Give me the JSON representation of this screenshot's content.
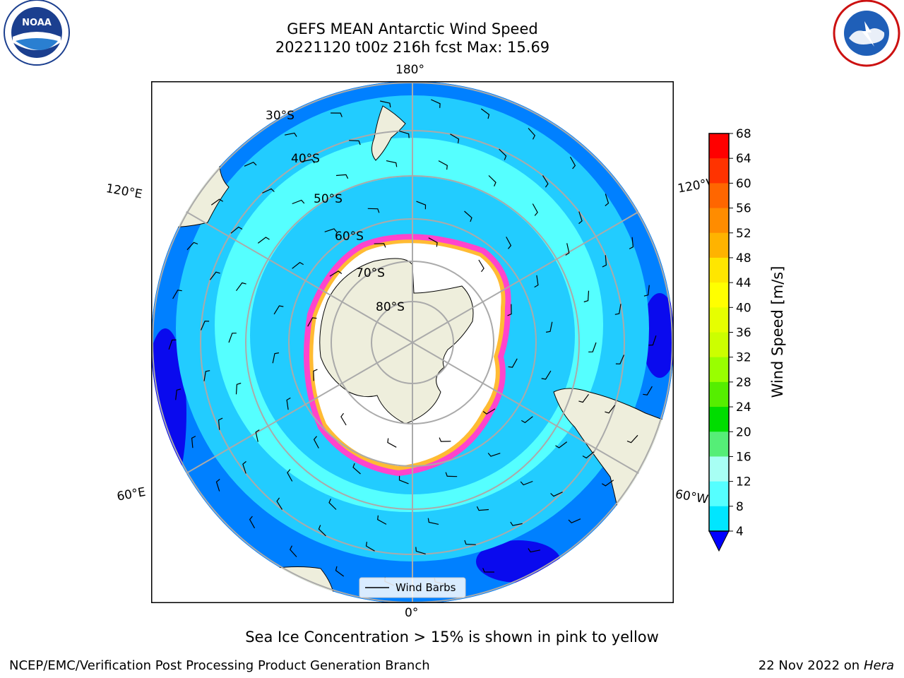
{
  "header": {
    "title": "GEFS MEAN Antarctic Wind Speed",
    "subtitle": "20221120 t00z 216h fcst   Max: 15.69"
  },
  "logos": {
    "left": "NOAA",
    "right": "NATIONAL WEATHER SERVICE"
  },
  "map": {
    "projection": "south-polar-stereographic",
    "longitude_labels": {
      "top": "180°",
      "bottom": "0°",
      "upper_left": "120°E",
      "upper_right": "120°W",
      "lower_left": "60°E",
      "lower_right": "60°W"
    },
    "latitude_labels": [
      "30°S",
      "40°S",
      "50°S",
      "60°S",
      "70°S",
      "80°S"
    ],
    "legend_label": "Wind Barbs"
  },
  "colorbar": {
    "label": "Wind Speed [m/s]",
    "ticks": [
      "68",
      "64",
      "60",
      "56",
      "52",
      "48",
      "44",
      "40",
      "36",
      "32",
      "28",
      "24",
      "20",
      "16",
      "12",
      "8",
      "4"
    ],
    "colors": [
      "#ff0000",
      "#ff3300",
      "#ff6600",
      "#ff8c00",
      "#ffb300",
      "#ffe600",
      "#ffff00",
      "#e6ff00",
      "#ccff00",
      "#99ff00",
      "#55ee00",
      "#00dd00",
      "#55ee77",
      "#a8fff4",
      "#55ffff",
      "#00e6ff",
      "#0080ff"
    ],
    "extend_color": "#0000ff"
  },
  "colors": {
    "land": "#eeeedc",
    "ocean_dark": "#0a0aee",
    "ocean_mid": "#0080ff",
    "ocean_light": "#22ccff",
    "ocean_cyan": "#55ffff",
    "ice_edge": "#ff44cc",
    "ice_yellow": "#ffbb33"
  },
  "caption": "Sea Ice Concentration > 15% is shown in pink to yellow",
  "footer": {
    "left": "NCEP/EMC/Verification Post Processing Product Generation Branch",
    "date": "22 Nov 2022 on",
    "machine": "Hera"
  }
}
